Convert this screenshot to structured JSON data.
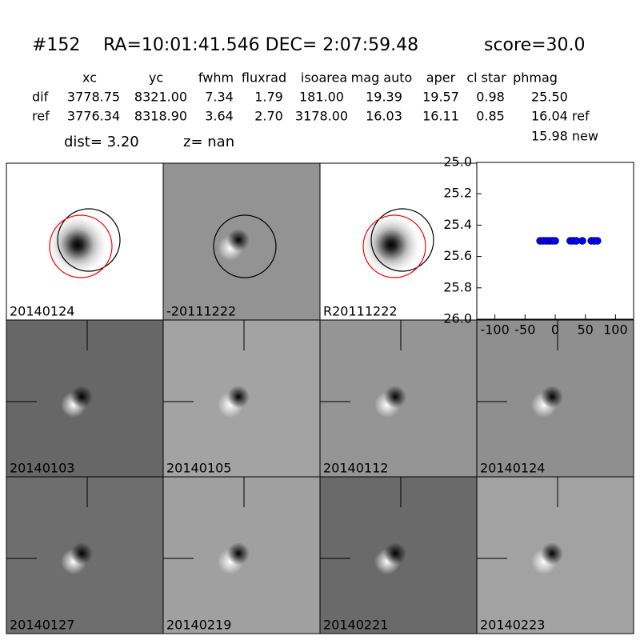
{
  "header": {
    "id": "#152",
    "coords": "RA=10:01:41.546 DEC= 2:07:59.48",
    "score": "score=30.0"
  },
  "table": {
    "columns": [
      "xc",
      "yc",
      "fwhm",
      "fluxrad",
      "isoarea",
      "mag auto",
      "aper",
      "cl star",
      "phmag"
    ],
    "rows": [
      [
        "dif",
        "3778.75",
        "8321.00",
        "7.34",
        "1.79",
        "181.00",
        "19.39",
        "19.57",
        "0.98",
        "25.50"
      ],
      [
        "ref",
        "3776.34",
        "8318.90",
        "3.64",
        "2.70",
        "3178.00",
        "16.03",
        "16.11",
        "0.85",
        "16.04 ref"
      ]
    ],
    "extra": "15.98 new"
  },
  "dist": "dist=  3.20",
  "z": "z=   nan",
  "panels": [
    {
      "label": "20140124",
      "color": "#ffffff"
    },
    {
      "label": "-20111222",
      "color": "#939393"
    },
    {
      "label": "R20111222",
      "color": "#ffffff"
    },
    {
      "label": "20140103",
      "color": "#676767"
    },
    {
      "label": "20140105",
      "color": "#a3a3a3"
    },
    {
      "label": "20140112",
      "color": "#959595"
    },
    {
      "label": "20140124",
      "color": "#8f8f8f",
      "label_color": "#ff0000"
    },
    {
      "label": "20140127",
      "color": "#6e6e6e"
    },
    {
      "label": "20140219",
      "color": "#a0a0a0"
    },
    {
      "label": "20140221",
      "color": "#6a6a6a"
    },
    {
      "label": "20140223",
      "color": "#a2a2a2"
    }
  ],
  "chart_data": {
    "type": "scatter",
    "color": "#0000ff",
    "x": [
      -25,
      -20,
      -15,
      -10,
      -5,
      0,
      25,
      30,
      35,
      45,
      60,
      65,
      70
    ],
    "y": [
      25.5,
      25.5,
      25.5,
      25.5,
      25.5,
      25.5,
      25.5,
      25.5,
      25.5,
      25.5,
      25.5,
      25.5,
      25.5
    ],
    "xlim": [
      -130,
      130
    ],
    "ylim": [
      26.0,
      25.0
    ],
    "xticks": [
      -100,
      -50,
      0,
      50,
      100
    ],
    "yticks": [
      {
        "value": 25.0,
        "label": "25.0"
      },
      {
        "value": 25.2,
        "label": "25.2"
      },
      {
        "value": 25.4,
        "label": "25.4"
      },
      {
        "value": 25.6,
        "label": "25.6"
      },
      {
        "value": 25.8,
        "label": "25.8"
      },
      {
        "value": 26.0,
        "label": "26.0"
      }
    ]
  }
}
